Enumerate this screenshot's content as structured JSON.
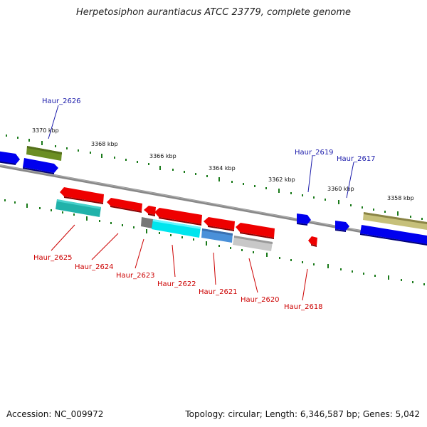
{
  "title": "Herpetosiphon aurantiacus ATCC 23779, complete genome",
  "footer": {
    "accession": "Accession: NC_009972",
    "summary": "Topology: circular; Length: 6,346,587 bp; Genes: 5,042"
  },
  "colors": {
    "backbone": "#808080",
    "tick": "#1a7a1a",
    "forward_label": "#1a1aaa",
    "reverse_label": "#cc0000",
    "forward_gene": "#0000ee",
    "reverse_gene": "#ee0000"
  },
  "scale_ticks": [
    "3370 kbp",
    "3368 kbp",
    "3366 kbp",
    "3364 kbp",
    "3362 kbp",
    "3360 kbp",
    "3358 kbp"
  ],
  "gene_labels": {
    "forward": [
      "Haur_2626",
      "Haur_2619",
      "Haur_2617"
    ],
    "reverse": [
      "Haur_2625",
      "Haur_2624",
      "Haur_2623",
      "Haur_2622",
      "Haur_2621",
      "Haur_2620",
      "Haur_2618"
    ]
  }
}
